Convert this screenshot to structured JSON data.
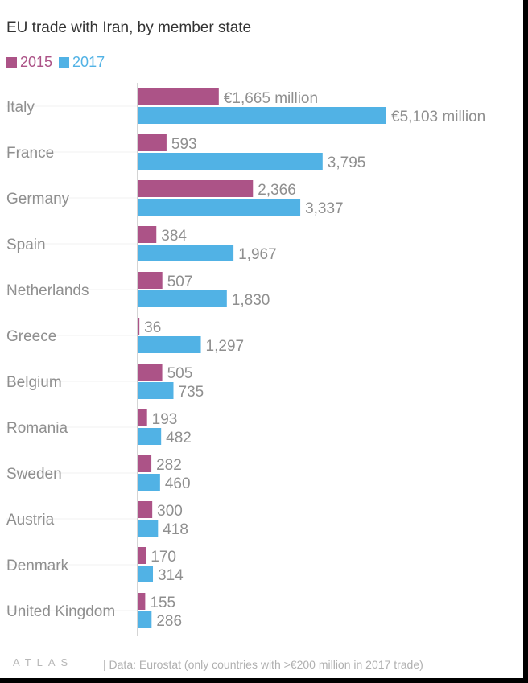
{
  "chart_data": {
    "type": "bar",
    "orientation": "horizontal",
    "title": "EU trade with Iran, by member state",
    "categories": [
      "Italy",
      "France",
      "Germany",
      "Spain",
      "Netherlands",
      "Greece",
      "Belgium",
      "Romania",
      "Sweden",
      "Austria",
      "Denmark",
      "United Kingdom"
    ],
    "series": [
      {
        "name": "2015",
        "color": "#ac5387",
        "values": [
          1665,
          593,
          2366,
          384,
          507,
          36,
          505,
          193,
          282,
          300,
          170,
          155
        ],
        "labels": [
          "€1,665 million",
          "593",
          "2,366",
          "384",
          "507",
          "36",
          "505",
          "193",
          "282",
          "300",
          "170",
          "155"
        ]
      },
      {
        "name": "2017",
        "color": "#51b2e5",
        "values": [
          5103,
          3795,
          3337,
          1967,
          1830,
          1297,
          735,
          482,
          460,
          418,
          314,
          286
        ],
        "labels": [
          "€5,103 million",
          "3,795",
          "3,337",
          "1,967",
          "1,830",
          "1,297",
          "735",
          "482",
          "460",
          "418",
          "314",
          "286"
        ]
      }
    ],
    "xlim": [
      0,
      5103
    ],
    "grid": false,
    "legend_position": "top-left"
  },
  "footer": {
    "logo": "ATLAS",
    "source": "| Data: Eurostat (only countries with >€200 million in 2017 trade)"
  }
}
